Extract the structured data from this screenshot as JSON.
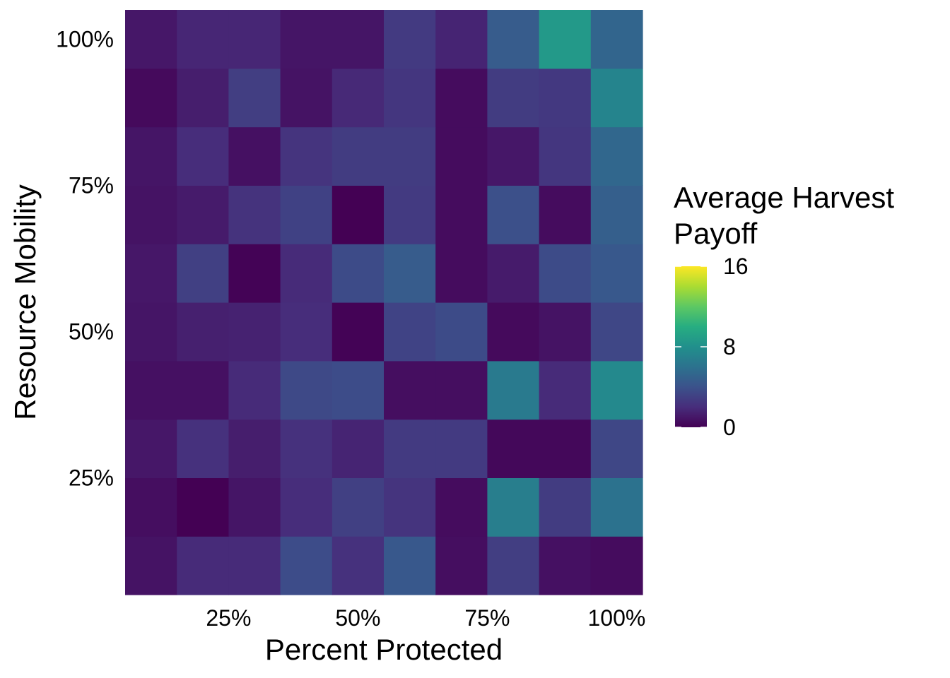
{
  "chart_data": {
    "type": "heatmap",
    "title": "",
    "xlabel": "Percent Protected",
    "ylabel": "Resource Mobility",
    "x_categories": [
      "10%",
      "20%",
      "30%",
      "40%",
      "50%",
      "60%",
      "70%",
      "80%",
      "90%",
      "100%"
    ],
    "y_categories": [
      "10%",
      "20%",
      "30%",
      "40%",
      "50%",
      "60%",
      "70%",
      "80%",
      "90%",
      "100%"
    ],
    "x_tick_labels": [
      "25%",
      "50%",
      "75%",
      "100%"
    ],
    "y_tick_labels": [
      "25%",
      "50%",
      "75%",
      "100%"
    ],
    "x_tick_positions": [
      2.5,
      5,
      7.5,
      10
    ],
    "y_tick_positions": [
      2.5,
      5,
      7.5,
      10
    ],
    "values_note": "rows listed from bottom (mobility 10%) to top (mobility 100%); columns left (10%) to right (100%)",
    "values": [
      [
        0.8,
        1.9,
        1.9,
        3.7,
        2.2,
        4.4,
        0.6,
        2.9,
        0.7,
        0.5
      ],
      [
        0.6,
        0.0,
        0.9,
        2.0,
        3.0,
        2.4,
        0.5,
        6.8,
        2.8,
        6.0
      ],
      [
        1.0,
        2.2,
        1.3,
        2.2,
        1.6,
        2.7,
        2.7,
        0.3,
        0.3,
        3.4
      ],
      [
        0.7,
        0.7,
        1.9,
        3.5,
        3.7,
        0.6,
        0.6,
        6.5,
        1.9,
        7.5
      ],
      [
        0.9,
        1.4,
        1.5,
        2.0,
        0.1,
        3.2,
        3.6,
        0.4,
        0.8,
        3.4
      ],
      [
        1.0,
        3.0,
        0.1,
        1.9,
        3.6,
        4.6,
        0.5,
        1.2,
        3.6,
        4.4
      ],
      [
        0.8,
        1.2,
        2.3,
        3.1,
        0.0,
        2.7,
        0.5,
        3.9,
        0.5,
        4.8
      ],
      [
        0.9,
        2.0,
        0.7,
        2.4,
        2.8,
        2.8,
        0.5,
        1.0,
        2.5,
        5.3
      ],
      [
        0.4,
        1.3,
        2.9,
        0.8,
        1.8,
        2.5,
        0.5,
        2.8,
        2.6,
        7.2
      ],
      [
        1.0,
        1.7,
        1.7,
        0.9,
        0.9,
        2.7,
        1.6,
        4.6,
        8.6,
        5.2
      ]
    ],
    "legend": {
      "title_lines": [
        "Average Harvest",
        "Payoff"
      ],
      "breaks": [
        0,
        8,
        16
      ],
      "break_labels": [
        "0",
        "8",
        "16"
      ],
      "limits": [
        0,
        16
      ]
    },
    "colors": {
      "stops": [
        "#440154",
        "#472D7B",
        "#3B528B",
        "#2C728E",
        "#21908C",
        "#27AD81",
        "#5DC863",
        "#AADC32",
        "#FDE725"
      ],
      "background": "#ffffff"
    },
    "grid": false
  }
}
